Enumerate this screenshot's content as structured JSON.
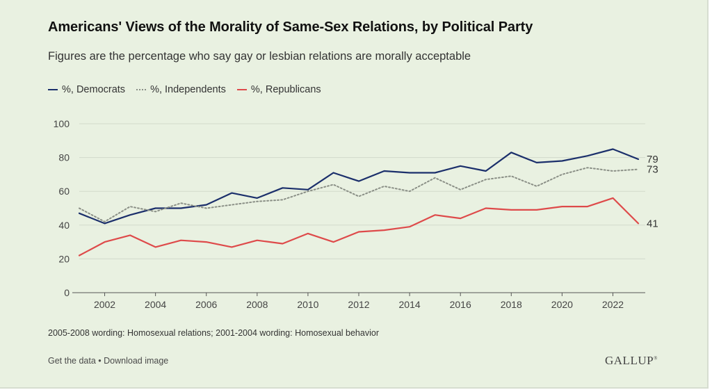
{
  "header": {
    "title": "Americans' Views of the Morality of Same-Sex Relations, by Political Party",
    "subtitle": "Figures are the percentage who say gay or lesbian relations are morally acceptable"
  },
  "footer": {
    "note": "2005-2008 wording: Homosexual relations; 2001-2004 wording: Homosexual behavior",
    "get_data": "Get the data",
    "separator": " • ",
    "download": "Download image",
    "logo": "GALLUP"
  },
  "colors": {
    "democrats": "#1b2f6b",
    "independents": "#8a8f86",
    "republicans": "#de4a4a",
    "grid": "#d2dacb",
    "axis": "#555555",
    "text": "#444444"
  },
  "chart_data": {
    "type": "line",
    "title": "Americans' Views of the Morality of Same-Sex Relations, by Political Party",
    "xlabel": "",
    "ylabel": "",
    "xlim": [
      2001,
      2023
    ],
    "ylim": [
      0,
      100
    ],
    "x": [
      2001,
      2002,
      2003,
      2004,
      2005,
      2006,
      2007,
      2008,
      2009,
      2010,
      2011,
      2012,
      2013,
      2014,
      2015,
      2016,
      2017,
      2018,
      2019,
      2020,
      2021,
      2022,
      2023
    ],
    "x_ticks": [
      2002,
      2004,
      2006,
      2008,
      2010,
      2012,
      2014,
      2016,
      2018,
      2020,
      2022
    ],
    "y_ticks": [
      0,
      20,
      40,
      60,
      80,
      100
    ],
    "grid": true,
    "legend_position": "top-left",
    "series": [
      {
        "name": "%, Democrats",
        "style": "solid",
        "end_label": "79",
        "values": [
          47,
          41,
          46,
          50,
          50,
          52,
          59,
          56,
          62,
          61,
          71,
          66,
          72,
          71,
          71,
          75,
          72,
          83,
          77,
          78,
          81,
          85,
          79
        ]
      },
      {
        "name": "%, Independents",
        "style": "dotted",
        "end_label": "73",
        "values": [
          50,
          42,
          51,
          48,
          53,
          50,
          52,
          54,
          55,
          60,
          64,
          57,
          63,
          60,
          68,
          61,
          67,
          69,
          63,
          70,
          74,
          72,
          73
        ]
      },
      {
        "name": "%, Republicans",
        "style": "solid",
        "end_label": "41",
        "values": [
          22,
          30,
          34,
          27,
          31,
          30,
          27,
          31,
          29,
          35,
          30,
          36,
          37,
          39,
          46,
          44,
          50,
          49,
          49,
          51,
          51,
          56,
          41
        ]
      }
    ]
  }
}
